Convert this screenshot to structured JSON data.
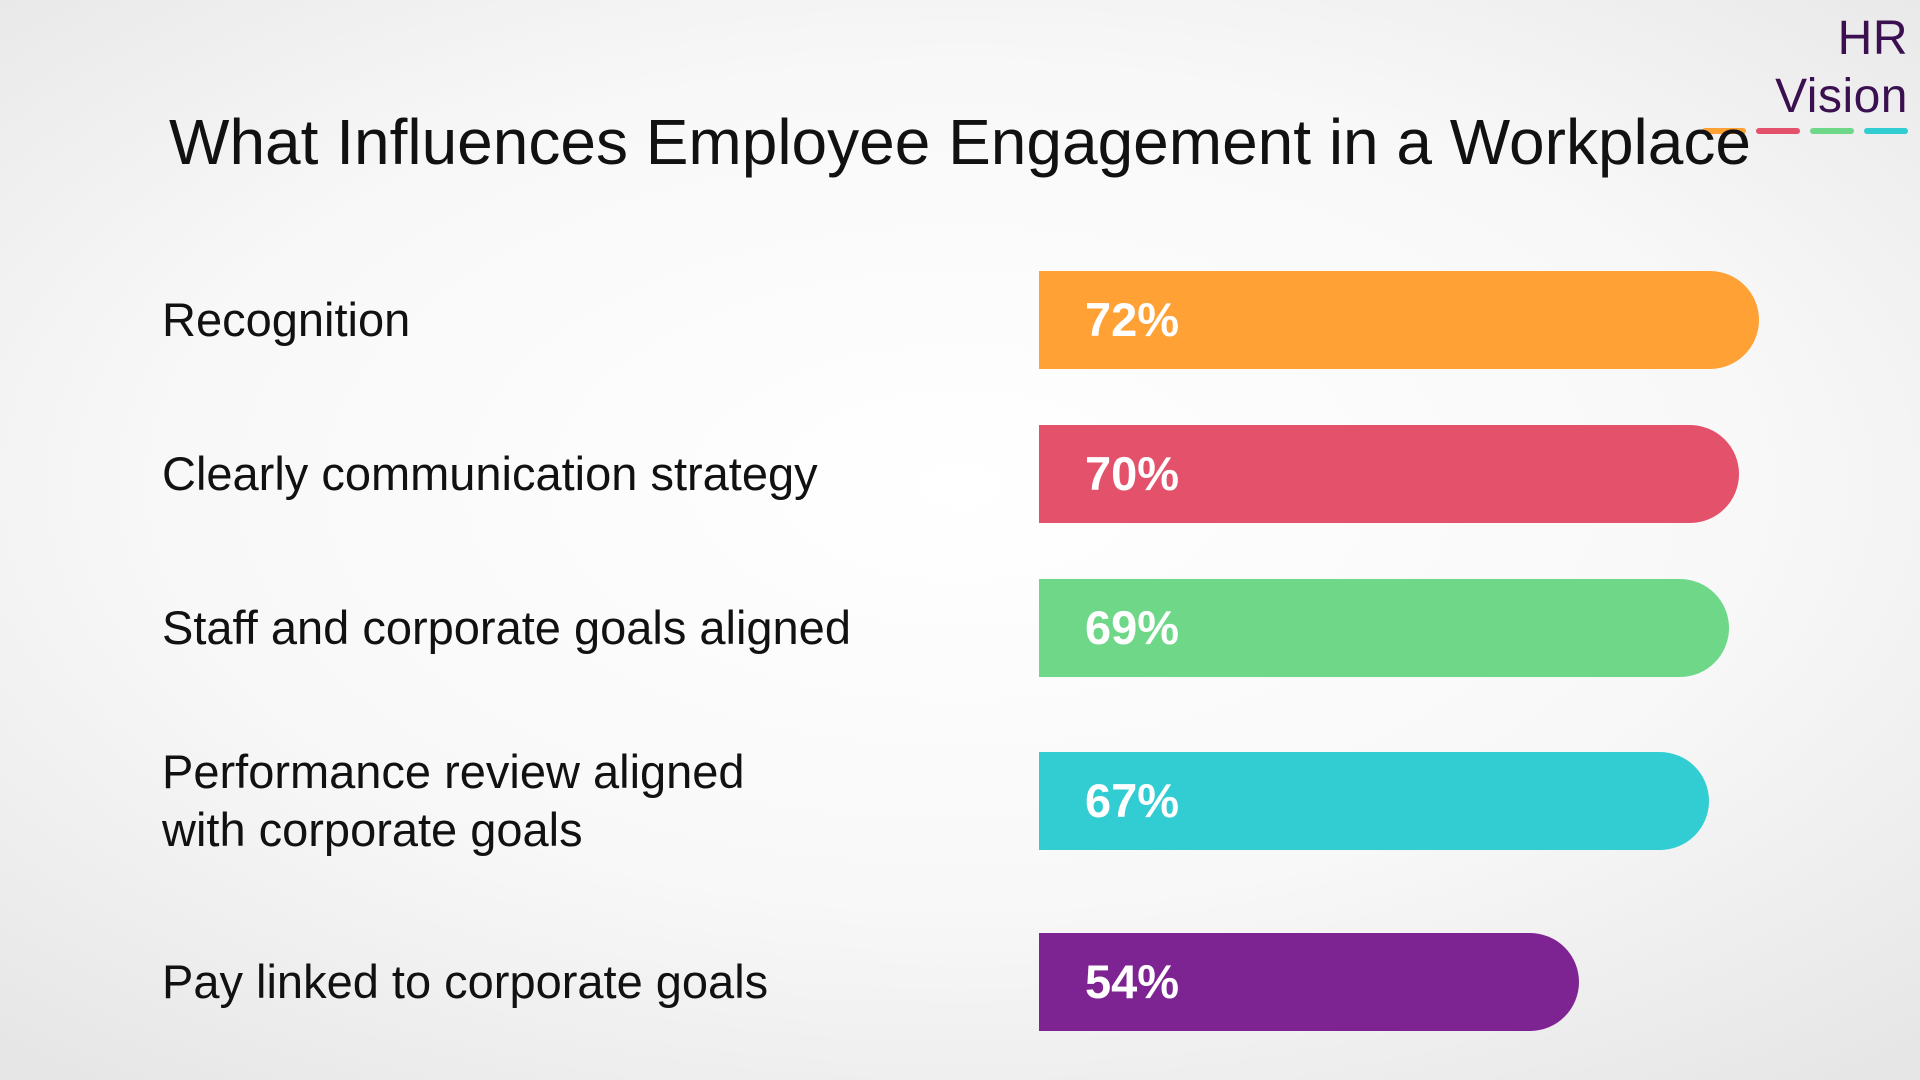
{
  "brand": {
    "name": "HR Vision",
    "dash_colors": [
      "#FFA134",
      "#E3526A",
      "#6ED888",
      "#31CDD2"
    ]
  },
  "chart_data": {
    "type": "bar",
    "orientation": "horizontal",
    "title": "What Influences Employee Engagement in a Workplace",
    "value_suffix": "%",
    "xlim": [
      0,
      100
    ],
    "categories": [
      "Recognition",
      "Clearly communication strategy",
      "Staff and corporate goals aligned",
      "Performance review aligned\nwith corporate goals",
      "Pay linked to corporate goals"
    ],
    "values": [
      72,
      70,
      69,
      67,
      54
    ],
    "value_labels": [
      "72%",
      "70%",
      "69%",
      "67%",
      "54%"
    ],
    "colors": [
      "#FFA134",
      "#E3526A",
      "#6ED888",
      "#31CDD2",
      "#7E2392"
    ],
    "grid": false,
    "legend": "none"
  }
}
